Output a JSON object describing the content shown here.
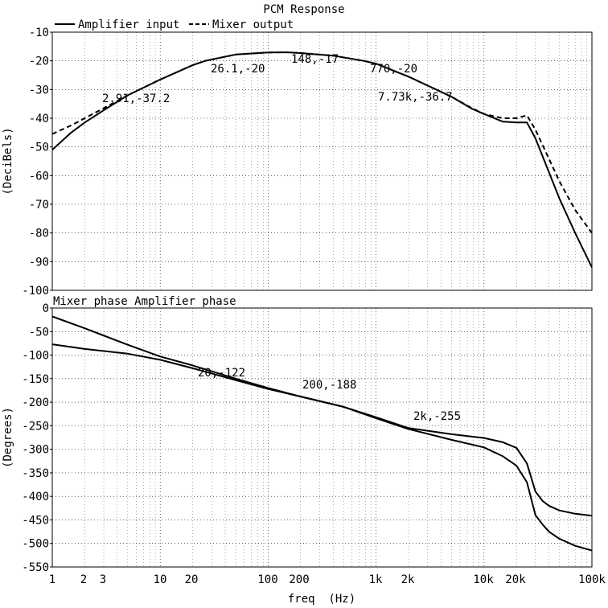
{
  "chart_data": [
    {
      "type": "line",
      "title": "PCM Response",
      "xlabel": "",
      "ylabel": "(DeciBels)",
      "xscale": "log",
      "xlim": [
        1,
        100000
      ],
      "ylim": [
        -100,
        -10
      ],
      "yticks": [
        "-10",
        "-20",
        "-30",
        "-40",
        "-50",
        "-60",
        "-70",
        "-80",
        "-90",
        "-100"
      ],
      "grid": true,
      "legend": "top-left",
      "series": [
        {
          "name": "Amplifier input",
          "style": "solid",
          "x": [
            1,
            1.5,
            2,
            3,
            5,
            10,
            20,
            26.1,
            50,
            100,
            148,
            200,
            400,
            770,
            1000,
            2000,
            5000,
            7730,
            10000,
            15000,
            20000,
            25000,
            30000,
            50000,
            70000,
            100000
          ],
          "y": [
            -51,
            -45,
            -41.5,
            -37.2,
            -32,
            -26.5,
            -21.5,
            -20,
            -17.8,
            -17.1,
            -17,
            -17.3,
            -18.2,
            -20,
            -21,
            -25.5,
            -32.5,
            -36.7,
            -38.5,
            -41.2,
            -41.5,
            -41.5,
            -47,
            -68,
            -80,
            -92
          ]
        },
        {
          "name": "Mixer output",
          "style": "dashed",
          "x": [
            1,
            1.5,
            2,
            3,
            5,
            10,
            20,
            26.1,
            50,
            100,
            148,
            200,
            400,
            770,
            1000,
            2000,
            5000,
            7730,
            10000,
            15000,
            20000,
            25000,
            30000,
            50000,
            70000,
            100000
          ],
          "y": [
            -45.5,
            -42.5,
            -40,
            -36.5,
            -32,
            -26.5,
            -21.5,
            -20,
            -17.8,
            -17.1,
            -17,
            -17.3,
            -18.2,
            -20,
            -21,
            -25.5,
            -32.5,
            -36.5,
            -38.5,
            -40,
            -40,
            -39,
            -44,
            -62,
            -72,
            -80
          ]
        }
      ],
      "annotations": [
        {
          "text": "2.91,-37.2"
        },
        {
          "text": "26.1,-20"
        },
        {
          "text": "148,-17"
        },
        {
          "text": "770,-20"
        },
        {
          "text": "7.73k,-36.7"
        }
      ]
    },
    {
      "type": "line",
      "title": "",
      "xlabel": "freq  (Hz)",
      "ylabel": "(Degrees)",
      "xscale": "log",
      "xlim": [
        1,
        100000
      ],
      "ylim": [
        -550,
        0
      ],
      "yticks": [
        "0",
        "-50",
        "-100",
        "-150",
        "-200",
        "-250",
        "-300",
        "-350",
        "-400",
        "-450",
        "-500",
        "-550"
      ],
      "xticks": [
        "1",
        "2",
        "3",
        "10",
        "20",
        "100",
        "200",
        "1k",
        "2k",
        "10k",
        "20k",
        "100k"
      ],
      "grid": true,
      "legend": "top-left",
      "series": [
        {
          "name": "Mixer phase",
          "style": "solid",
          "x": [
            1,
            2,
            5,
            10,
            20,
            50,
            100,
            200,
            500,
            1000,
            2000,
            5000,
            10000,
            15000,
            20000,
            25000,
            30000,
            35000,
            40000,
            50000,
            70000,
            100000
          ],
          "y": [
            -18,
            -43,
            -78,
            -103,
            -122,
            -150,
            -170,
            -188,
            -210,
            -232,
            -255,
            -268,
            -276,
            -285,
            -297,
            -330,
            -390,
            -410,
            -420,
            -430,
            -437,
            -441
          ]
        },
        {
          "name": "Amplifier phase",
          "style": "solid",
          "x": [
            1,
            2,
            5,
            10,
            20,
            50,
            100,
            200,
            500,
            1000,
            2000,
            5000,
            10000,
            15000,
            20000,
            25000,
            30000,
            35000,
            40000,
            50000,
            70000,
            100000
          ],
          "y": [
            -77,
            -87,
            -97,
            -110,
            -128,
            -153,
            -172,
            -188,
            -210,
            -234,
            -257,
            -280,
            -296,
            -315,
            -335,
            -370,
            -440,
            -460,
            -475,
            -490,
            -505,
            -515
          ]
        }
      ],
      "annotations": [
        {
          "text": "20,-122"
        },
        {
          "text": "200,-188"
        },
        {
          "text": "2k,-255"
        }
      ]
    }
  ]
}
